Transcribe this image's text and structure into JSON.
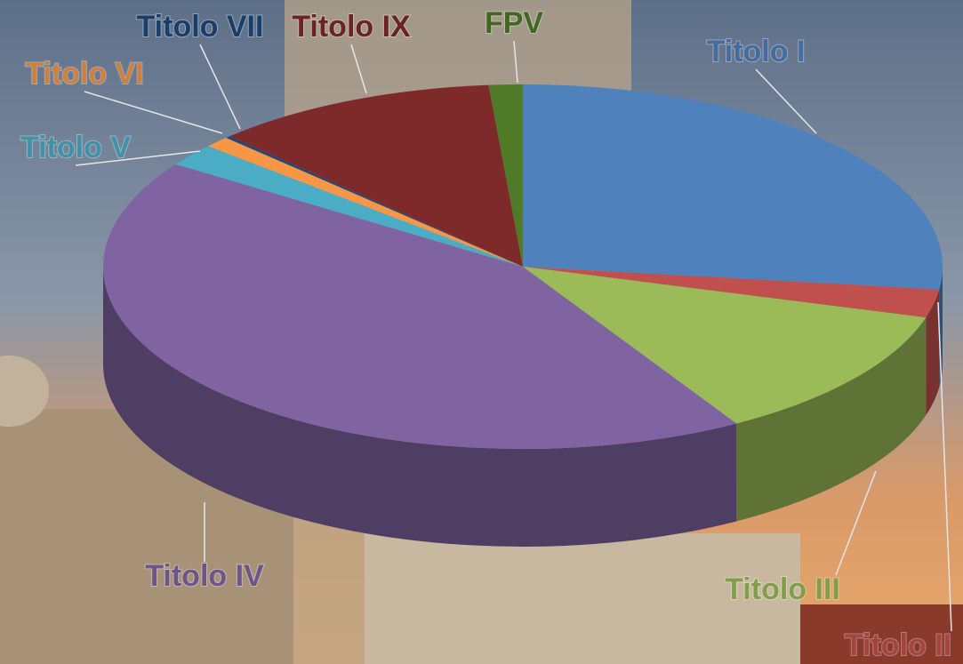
{
  "chart_data": {
    "type": "pie",
    "categories": [
      "Titolo I",
      "Titolo II",
      "Titolo III",
      "Titolo IV",
      "Titolo V",
      "Titolo VI",
      "Titolo VII",
      "Titolo IX",
      "FPV"
    ],
    "values": [
      27,
      2.5,
      12,
      43,
      2,
      1,
      0.2,
      11,
      1.3
    ],
    "colors": [
      "#4f81bd",
      "#c0504d",
      "#9bbb59",
      "#8064a2",
      "#4bacc6",
      "#f79646",
      "#1f497d",
      "#7f2a2a",
      "#4f7a28"
    ]
  }
}
